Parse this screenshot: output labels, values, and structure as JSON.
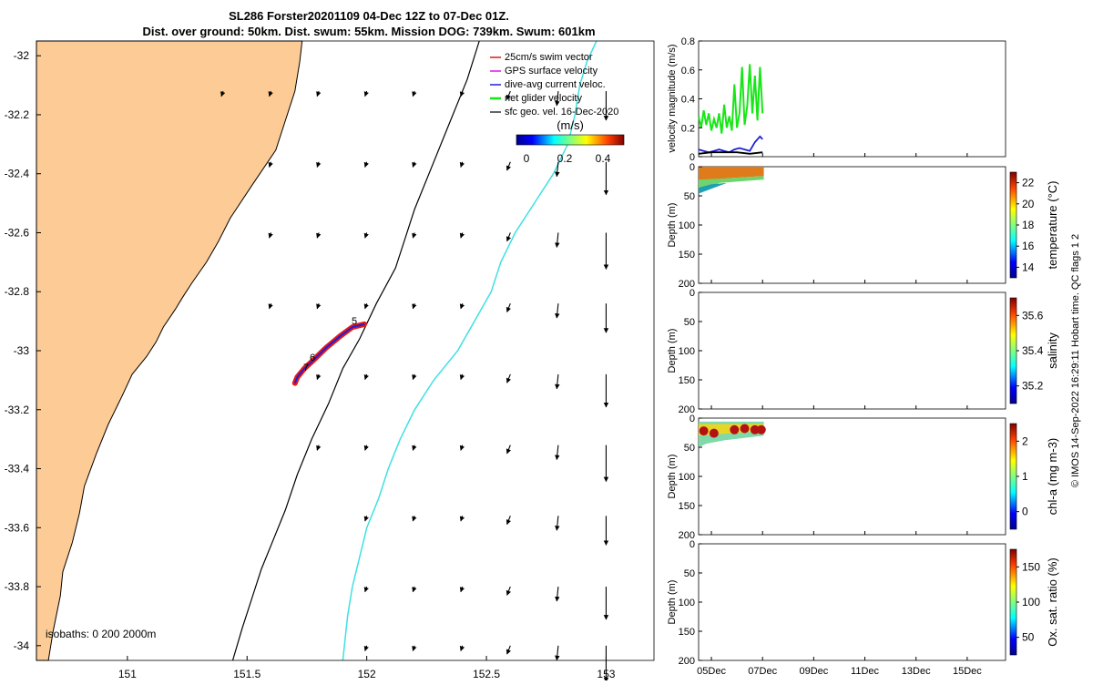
{
  "title_lines": [
    "SL286 Forster20201109 04-Dec 12Z to 07-Dec 01Z.",
    "Dist. over ground: 50km. Dist. swum: 55km. Mission DOG: 739km. Swum: 601km"
  ],
  "side_text": "© IMOS 14-Sep-2022 16:29:11 Hobart time. QC flags 1  2",
  "colors": {
    "land": "#fccb96",
    "coast": "#000000",
    "isobath_0": "#000000",
    "isobath_2000": "#3fe0e0",
    "track": "#e61717",
    "dive_avg": "#1f1fd6",
    "net_glider": "#17e617",
    "gps": "#e617e6"
  },
  "chart_data": [
    {
      "type": "map",
      "xlim": [
        150.62,
        153.2
      ],
      "ylim": [
        -34.05,
        -31.95
      ],
      "x_ticks": [
        151,
        151.5,
        152,
        152.5,
        153
      ],
      "x_tick_labels": [
        "151",
        "151.5",
        "152",
        "152.5",
        "153"
      ],
      "y_ticks": [
        -32,
        -32.2,
        -32.4,
        -32.6,
        -32.8,
        -33,
        -33.2,
        -33.4,
        -33.6,
        -33.8,
        -34
      ],
      "y_tick_labels": [
        "-32",
        "-32.2",
        "-32.4",
        "-32.6",
        "-32.8",
        "-33",
        "-33.2",
        "-33.4",
        "-33.6",
        "-33.8",
        "-34"
      ],
      "legend": {
        "placement": "top-right",
        "entries": [
          "25cm/s swim vector",
          "GPS surface velocity",
          "dive-avg current veloc.",
          "net glider velocity",
          "sfc geo. vel. 16-Dec-2020"
        ]
      },
      "colorbar": {
        "label": "(m/s)",
        "ticks": [
          "0",
          "0.2",
          "0.4"
        ],
        "range": [
          0,
          0.5
        ]
      },
      "isobath_label": "isobaths: 0   200 2000m",
      "track_labels": [
        "5",
        "6",
        "7"
      ],
      "coastline": [
        [
          150.62,
          -31.95
        ],
        [
          151.73,
          -31.95
        ],
        [
          151.72,
          -32.02
        ],
        [
          151.7,
          -32.12
        ],
        [
          151.66,
          -32.22
        ],
        [
          151.62,
          -32.32
        ],
        [
          151.52,
          -32.44
        ],
        [
          151.43,
          -32.55
        ],
        [
          151.38,
          -32.63
        ],
        [
          151.33,
          -32.7
        ],
        [
          151.27,
          -32.77
        ],
        [
          151.23,
          -32.82
        ],
        [
          151.2,
          -32.86
        ],
        [
          151.15,
          -32.92
        ],
        [
          151.12,
          -32.97
        ],
        [
          151.08,
          -33.02
        ],
        [
          151.02,
          -33.08
        ],
        [
          150.98,
          -33.15
        ],
        [
          150.92,
          -33.25
        ],
        [
          150.87,
          -33.35
        ],
        [
          150.82,
          -33.46
        ],
        [
          150.8,
          -33.55
        ],
        [
          150.77,
          -33.65
        ],
        [
          150.73,
          -33.75
        ],
        [
          150.72,
          -33.83
        ],
        [
          150.69,
          -33.95
        ],
        [
          150.67,
          -34.05
        ],
        [
          150.62,
          -34.05
        ]
      ],
      "isobath_200m": [
        [
          152.47,
          -31.95
        ],
        [
          152.42,
          -32.08
        ],
        [
          152.35,
          -32.22
        ],
        [
          152.28,
          -32.36
        ],
        [
          152.2,
          -32.52
        ],
        [
          152.16,
          -32.62
        ],
        [
          152.12,
          -32.72
        ],
        [
          152.04,
          -32.84
        ],
        [
          151.97,
          -32.96
        ],
        [
          151.9,
          -33.06
        ],
        [
          151.84,
          -33.18
        ],
        [
          151.77,
          -33.3
        ],
        [
          151.71,
          -33.42
        ],
        [
          151.66,
          -33.54
        ],
        [
          151.61,
          -33.64
        ],
        [
          151.56,
          -33.74
        ],
        [
          151.52,
          -33.84
        ],
        [
          151.48,
          -33.94
        ],
        [
          151.44,
          -34.05
        ]
      ],
      "isobath_2000m": [
        [
          152.96,
          -31.95
        ],
        [
          152.92,
          -32.02
        ],
        [
          152.89,
          -32.1
        ],
        [
          152.87,
          -32.2
        ],
        [
          152.84,
          -32.3
        ],
        [
          152.78,
          -32.4
        ],
        [
          152.7,
          -32.5
        ],
        [
          152.62,
          -32.6
        ],
        [
          152.56,
          -32.7
        ],
        [
          152.52,
          -32.8
        ],
        [
          152.45,
          -32.9
        ],
        [
          152.38,
          -33.0
        ],
        [
          152.28,
          -33.1
        ],
        [
          152.2,
          -33.2
        ],
        [
          152.14,
          -33.3
        ],
        [
          152.09,
          -33.4
        ],
        [
          152.05,
          -33.5
        ],
        [
          152.0,
          -33.6
        ],
        [
          151.97,
          -33.7
        ],
        [
          151.94,
          -33.8
        ],
        [
          151.92,
          -33.9
        ],
        [
          151.9,
          -34.05
        ]
      ],
      "glider_track": [
        [
          151.99,
          -32.91
        ],
        [
          151.94,
          -32.92
        ],
        [
          151.89,
          -32.95
        ],
        [
          151.83,
          -32.99
        ],
        [
          151.78,
          -33.03
        ],
        [
          151.74,
          -33.06
        ],
        [
          151.71,
          -33.09
        ],
        [
          151.7,
          -33.11
        ]
      ],
      "geo_vectors_description": "grid of surface geostrophic velocity arrows, stronger southward flow near 153E"
    },
    {
      "type": "line",
      "ylabel": "velocity magnitude (m/s)",
      "ylim": [
        0,
        0.8
      ],
      "y_ticks": [
        0,
        0.2,
        0.4,
        0.6,
        0.8
      ],
      "x_range_days": [
        4.5,
        16.5
      ],
      "series": [
        {
          "color": "#17e617",
          "x": [
            4.5,
            4.6,
            4.7,
            4.8,
            4.9,
            5.0,
            5.1,
            5.2,
            5.3,
            5.4,
            5.5,
            5.6,
            5.7,
            5.8,
            5.9,
            6.0,
            6.1,
            6.2,
            6.3,
            6.4,
            6.5,
            6.6,
            6.7,
            6.8,
            6.9,
            7.0
          ],
          "y": [
            0.28,
            0.2,
            0.32,
            0.22,
            0.3,
            0.18,
            0.26,
            0.2,
            0.3,
            0.16,
            0.36,
            0.2,
            0.28,
            0.18,
            0.5,
            0.2,
            0.3,
            0.62,
            0.22,
            0.35,
            0.64,
            0.3,
            0.56,
            0.25,
            0.62,
            0.3
          ]
        },
        {
          "color": "#1f1fd6",
          "x": [
            4.5,
            4.7,
            4.9,
            5.1,
            5.3,
            5.5,
            5.7,
            5.9,
            6.1,
            6.3,
            6.5,
            6.7,
            6.9,
            7.0
          ],
          "y": [
            0.05,
            0.04,
            0.03,
            0.04,
            0.05,
            0.04,
            0.03,
            0.05,
            0.06,
            0.05,
            0.04,
            0.1,
            0.14,
            0.12
          ]
        },
        {
          "color": "#000000",
          "x": [
            4.5,
            5.0,
            5.5,
            6.0,
            6.5,
            7.0
          ],
          "y": [
            0.02,
            0.03,
            0.03,
            0.03,
            0.02,
            0.03
          ]
        }
      ]
    },
    {
      "type": "heatmap",
      "ylabel": "Depth (m)",
      "colorbar_label": "temperature (°C)",
      "colorbar_ticks": [
        "14",
        "16",
        "18",
        "20",
        "22"
      ],
      "y_ticks": [
        "0",
        "50",
        "100",
        "150",
        "200"
      ]
    },
    {
      "type": "heatmap",
      "ylabel": "Depth (m)",
      "colorbar_label": "salinity",
      "colorbar_ticks": [
        "35.2",
        "35.4",
        "35.6"
      ],
      "y_ticks": [
        "0",
        "50",
        "100",
        "150",
        "200"
      ]
    },
    {
      "type": "heatmap",
      "ylabel": "Depth (m)",
      "colorbar_label": "chl-a (mg m-3)",
      "colorbar_ticks": [
        "0",
        "1",
        "2"
      ],
      "y_ticks": [
        "0",
        "50",
        "100",
        "150",
        "200"
      ]
    },
    {
      "type": "heatmap",
      "ylabel": "Depth (m)",
      "colorbar_label": "Ox. sat. ratio (%)",
      "colorbar_ticks": [
        "50",
        "100",
        "150"
      ],
      "y_ticks": [
        "0",
        "50",
        "100",
        "150",
        "200"
      ]
    }
  ],
  "x_axis_dates": [
    "05Dec",
    "07Dec",
    "09Dec",
    "11Dec",
    "13Dec",
    "15Dec"
  ]
}
